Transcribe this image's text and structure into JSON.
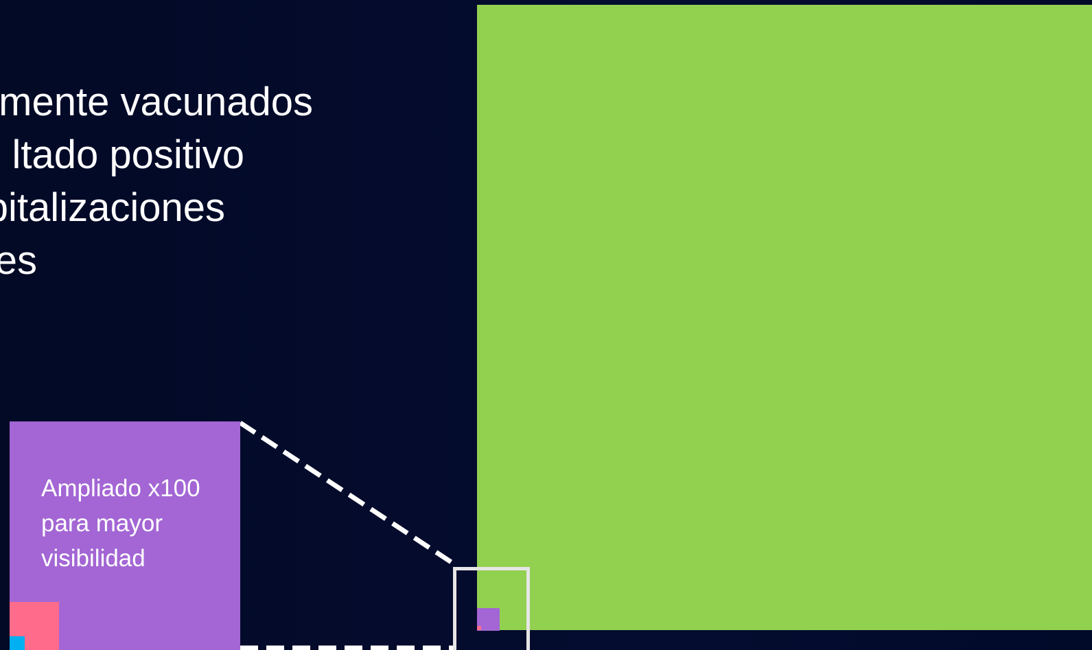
{
  "legend": {
    "items": [
      "mente vacunados",
      "ltado positivo",
      "pitalizaciones",
      "es"
    ]
  },
  "inset": {
    "label_lines": [
      "Ampliado x100",
      "para mayor",
      "visibilidad"
    ]
  },
  "colors": {
    "background": "#030a28",
    "vaccinated": "#92d050",
    "positive": "#a366d4",
    "hospitalizations": "#ff6b8a",
    "deaths": "#00b0f0",
    "zoom_box": "#e6e6e6",
    "text": "#ffffff"
  }
}
